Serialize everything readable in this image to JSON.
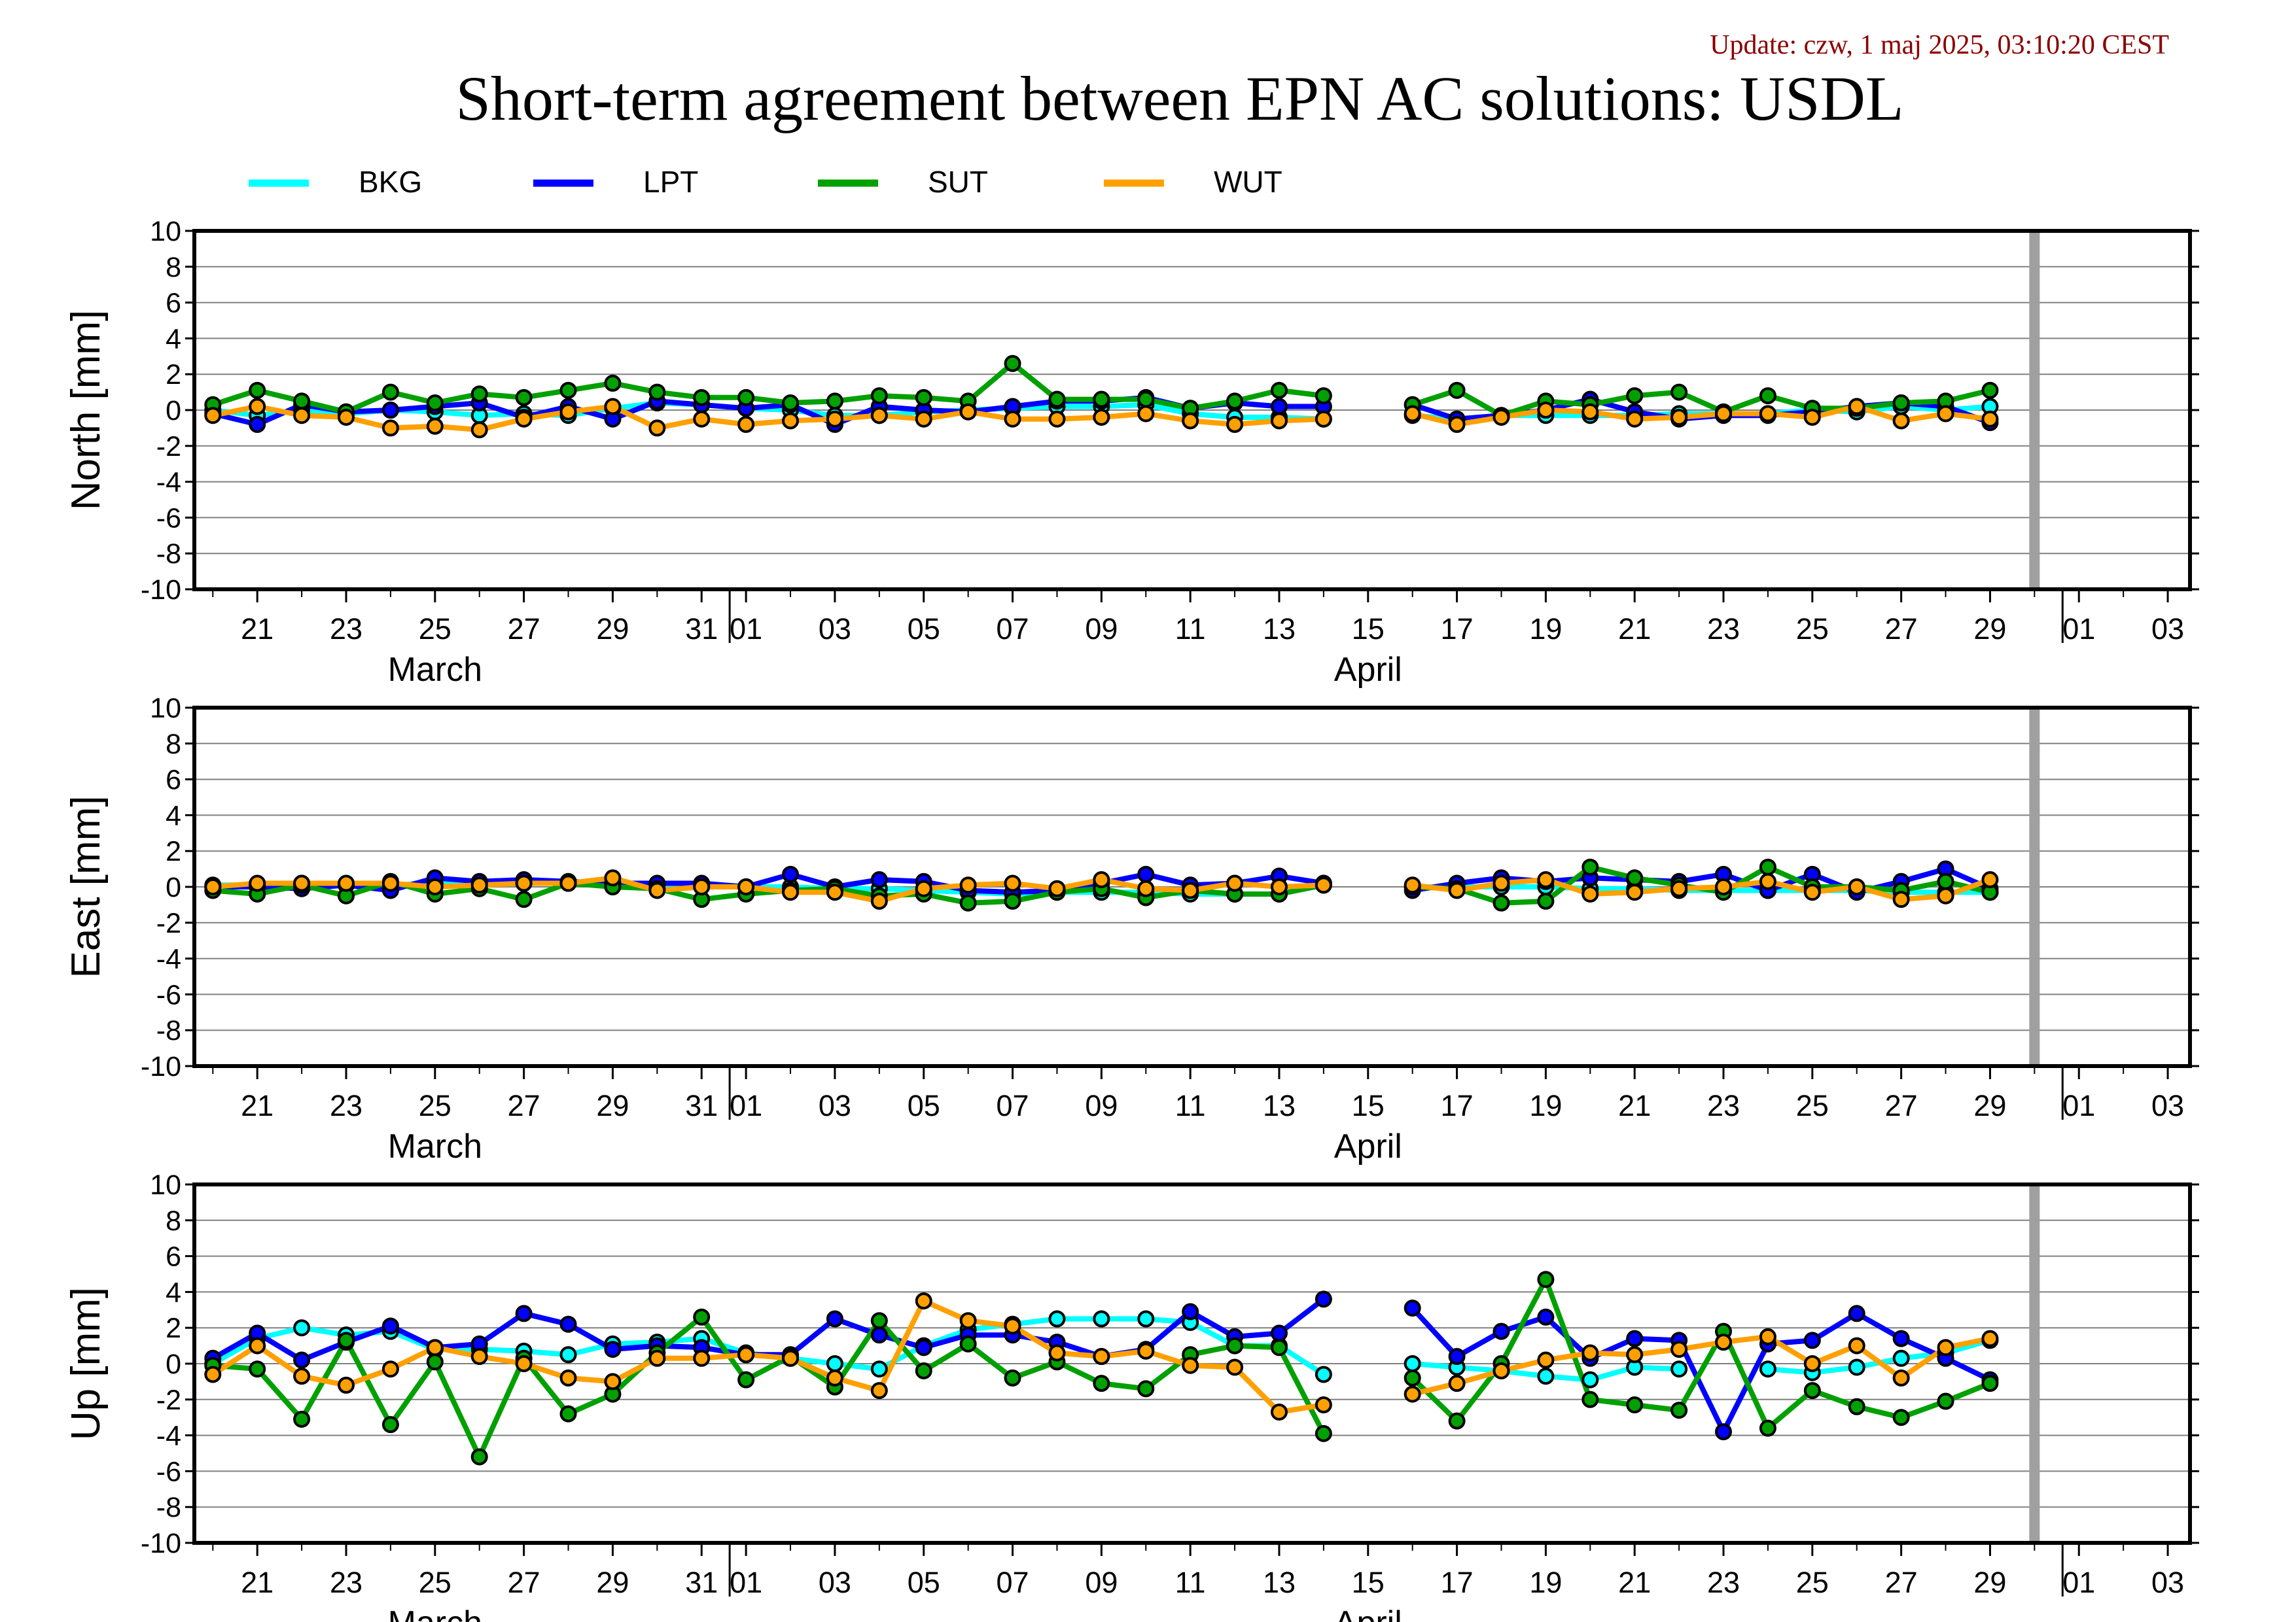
{
  "update_text": "Update: czw, 1 maj 2025, 03:10:20 CEST",
  "title": "Short-term agreement between EPN AC solutions: USDL",
  "colors": {
    "BKG": "#00ffff",
    "LPT": "#0000ff",
    "SUT": "#00a000",
    "WUT": "#ffa000",
    "cutoff": "#a0a0a0",
    "update": "#8b0000"
  },
  "legend": [
    "BKG",
    "LPT",
    "SUT",
    "WUT"
  ],
  "chart_data": {
    "type": "line",
    "x_dates": [
      "2025-03-20",
      "2025-03-21",
      "2025-03-22",
      "2025-03-23",
      "2025-03-24",
      "2025-03-25",
      "2025-03-26",
      "2025-03-27",
      "2025-03-28",
      "2025-03-29",
      "2025-03-30",
      "2025-03-31",
      "2025-04-01",
      "2025-04-02",
      "2025-04-03",
      "2025-04-04",
      "2025-04-05",
      "2025-04-06",
      "2025-04-07",
      "2025-04-08",
      "2025-04-09",
      "2025-04-10",
      "2025-04-11",
      "2025-04-12",
      "2025-04-13",
      "2025-04-14",
      "2025-04-15",
      "2025-04-16",
      "2025-04-17",
      "2025-04-18",
      "2025-04-19",
      "2025-04-20",
      "2025-04-21",
      "2025-04-22",
      "2025-04-23",
      "2025-04-24",
      "2025-04-25",
      "2025-04-26",
      "2025-04-27",
      "2025-04-28",
      "2025-04-29"
    ],
    "x_range": [
      "2025-03-19T14:00",
      "2025-05-03T12:00"
    ],
    "cutoff_date": "2025-04-30",
    "x_tick_labels": [
      "21",
      "23",
      "25",
      "27",
      "29",
      "31",
      "01",
      "03",
      "05",
      "07",
      "09",
      "11",
      "13",
      "15",
      "17",
      "19",
      "21",
      "23",
      "25",
      "27",
      "29",
      "01",
      "03"
    ],
    "x_tick_dates": [
      "2025-03-21",
      "2025-03-23",
      "2025-03-25",
      "2025-03-27",
      "2025-03-29",
      "2025-03-31",
      "2025-04-01",
      "2025-04-03",
      "2025-04-05",
      "2025-04-07",
      "2025-04-09",
      "2025-04-11",
      "2025-04-13",
      "2025-04-15",
      "2025-04-17",
      "2025-04-19",
      "2025-04-21",
      "2025-04-23",
      "2025-04-25",
      "2025-04-27",
      "2025-04-29",
      "2025-05-01",
      "2025-05-03"
    ],
    "month_labels": [
      {
        "label": "March",
        "date": "2025-03-25"
      },
      {
        "label": "April",
        "date": "2025-04-15"
      }
    ],
    "month_boundaries": [
      "2025-04-01",
      "2025-05-01"
    ],
    "ylim": [
      -10,
      10
    ],
    "y_ticks": [
      10,
      8,
      6,
      4,
      2,
      0,
      -2,
      -4,
      -6,
      -8,
      -10
    ],
    "grid": true,
    "legend_position": "top",
    "panels": [
      {
        "ylabel": "North [mm]",
        "series": [
          {
            "name": "BKG",
            "values": [
              0.0,
              -0.3,
              0.0,
              -0.2,
              0.0,
              -0.1,
              -0.3,
              -0.2,
              -0.3,
              0.1,
              0.4,
              0.3,
              0.1,
              0.0,
              -0.3,
              -0.3,
              -0.1,
              0.0,
              0.1,
              0.2,
              0.2,
              0.3,
              -0.2,
              -0.4,
              -0.4,
              -0.5,
              null,
              -0.3,
              -0.5,
              -0.3,
              -0.3,
              -0.3,
              -0.3,
              -0.2,
              -0.2,
              -0.2,
              0.0,
              -0.1,
              0.2,
              0.0,
              0.2
            ]
          },
          {
            "name": "LPT",
            "values": [
              -0.2,
              -0.8,
              0.3,
              -0.1,
              0.0,
              0.2,
              0.4,
              -0.4,
              0.2,
              -0.5,
              0.5,
              0.3,
              0.1,
              0.3,
              -0.8,
              0.2,
              0.0,
              -0.1,
              0.2,
              0.5,
              0.5,
              0.7,
              0.1,
              0.4,
              0.2,
              0.2,
              null,
              0.3,
              -0.5,
              -0.3,
              0.0,
              0.6,
              -0.1,
              -0.5,
              -0.3,
              -0.3,
              -0.1,
              0.2,
              0.4,
              0.2,
              -0.7
            ]
          },
          {
            "name": "SUT",
            "values": [
              0.3,
              1.1,
              0.5,
              -0.1,
              1.0,
              0.4,
              0.9,
              0.7,
              1.1,
              1.5,
              1.0,
              0.7,
              0.7,
              0.4,
              0.5,
              0.8,
              0.7,
              0.5,
              2.6,
              0.6,
              0.6,
              0.6,
              0.1,
              0.5,
              1.1,
              0.8,
              null,
              0.3,
              1.1,
              -0.3,
              0.5,
              0.3,
              0.8,
              1.0,
              -0.1,
              0.8,
              0.1,
              0.1,
              0.4,
              0.5,
              1.1
            ]
          },
          {
            "name": "WUT",
            "values": [
              -0.3,
              0.2,
              -0.3,
              -0.4,
              -1.0,
              -0.9,
              -1.1,
              -0.5,
              -0.1,
              0.2,
              -1.0,
              -0.5,
              -0.8,
              -0.6,
              -0.5,
              -0.3,
              -0.5,
              -0.1,
              -0.5,
              -0.5,
              -0.4,
              -0.2,
              -0.6,
              -0.8,
              -0.6,
              -0.5,
              null,
              -0.2,
              -0.8,
              -0.4,
              0.0,
              -0.1,
              -0.5,
              -0.4,
              -0.2,
              -0.2,
              -0.4,
              0.2,
              -0.6,
              -0.2,
              -0.5
            ]
          }
        ]
      },
      {
        "ylabel": "East [mm]",
        "series": [
          {
            "name": "BKG",
            "values": [
              0.1,
              0.1,
              0.2,
              0.1,
              0.1,
              0.2,
              0.2,
              0.2,
              0.2,
              0.2,
              0.1,
              0.1,
              0.0,
              0.0,
              -0.1,
              -0.1,
              -0.2,
              -0.3,
              -0.4,
              -0.3,
              -0.3,
              -0.3,
              -0.4,
              -0.4,
              -0.4,
              0.2,
              null,
              0.0,
              0.0,
              0.0,
              0.0,
              -0.1,
              -0.1,
              -0.2,
              -0.2,
              -0.2,
              -0.2,
              -0.2,
              -0.3,
              -0.3,
              -0.3
            ]
          },
          {
            "name": "LPT",
            "values": [
              0.0,
              0.0,
              -0.1,
              0.1,
              -0.2,
              0.5,
              0.3,
              0.4,
              0.3,
              0.2,
              0.2,
              0.2,
              0.0,
              0.7,
              0.0,
              0.4,
              0.3,
              -0.2,
              -0.3,
              -0.2,
              0.2,
              0.7,
              0.1,
              0.2,
              0.6,
              0.2,
              null,
              -0.2,
              0.2,
              0.5,
              0.3,
              0.5,
              0.4,
              0.3,
              0.7,
              -0.2,
              0.7,
              -0.3,
              0.3,
              1.0,
              -0.1
            ]
          },
          {
            "name": "SUT",
            "values": [
              -0.2,
              -0.4,
              0.1,
              -0.5,
              0.3,
              -0.4,
              -0.1,
              -0.7,
              0.2,
              0.0,
              -0.1,
              -0.7,
              -0.4,
              -0.2,
              -0.1,
              -0.5,
              -0.4,
              -0.9,
              -0.8,
              -0.3,
              -0.1,
              -0.6,
              -0.2,
              -0.4,
              -0.4,
              0.1,
              null,
              0.0,
              -0.1,
              -0.9,
              -0.8,
              1.1,
              0.5,
              0.1,
              -0.3,
              1.1,
              0.0,
              0.0,
              -0.2,
              0.3,
              -0.3
            ]
          },
          {
            "name": "WUT",
            "values": [
              0.0,
              0.2,
              0.2,
              0.2,
              0.2,
              0.0,
              0.1,
              0.2,
              0.2,
              0.5,
              -0.2,
              0.0,
              0.0,
              -0.3,
              -0.3,
              -0.8,
              -0.1,
              0.1,
              0.2,
              -0.1,
              0.4,
              -0.1,
              -0.2,
              0.2,
              0.0,
              0.1,
              null,
              0.1,
              -0.2,
              0.2,
              0.4,
              -0.4,
              -0.3,
              -0.1,
              0.0,
              0.3,
              -0.3,
              0.0,
              -0.7,
              -0.5,
              0.4
            ]
          }
        ]
      },
      {
        "ylabel": "Up [mm]",
        "series": [
          {
            "name": "BKG",
            "values": [
              0.0,
              1.4,
              2.0,
              1.6,
              1.8,
              0.8,
              0.8,
              0.7,
              0.5,
              1.1,
              1.2,
              1.4,
              0.6,
              0.3,
              0.0,
              -0.3,
              1.0,
              1.9,
              2.2,
              2.5,
              2.5,
              2.5,
              2.3,
              1.0,
              1.0,
              -0.6,
              null,
              0.0,
              -0.2,
              -0.4,
              -0.7,
              -0.9,
              -0.2,
              -0.3,
              null,
              -0.3,
              -0.5,
              -0.2,
              0.3,
              0.6,
              1.3
            ]
          },
          {
            "name": "LPT",
            "values": [
              0.3,
              1.7,
              0.2,
              1.2,
              2.1,
              0.9,
              1.1,
              2.8,
              2.2,
              0.8,
              1.0,
              0.9,
              0.5,
              0.5,
              2.5,
              1.6,
              0.9,
              1.6,
              1.6,
              1.2,
              0.4,
              0.8,
              2.9,
              1.5,
              1.7,
              3.6,
              null,
              3.1,
              0.4,
              1.8,
              2.6,
              0.3,
              1.4,
              1.3,
              -3.8,
              1.1,
              1.3,
              2.8,
              1.4,
              0.3,
              -0.9
            ]
          },
          {
            "name": "SUT",
            "values": [
              -0.1,
              -0.3,
              -3.1,
              1.3,
              -3.4,
              0.1,
              -5.2,
              0.3,
              -2.8,
              -1.7,
              0.6,
              2.6,
              -0.9,
              0.4,
              -1.3,
              2.4,
              -0.4,
              1.1,
              -0.8,
              0.1,
              -1.1,
              -1.4,
              0.5,
              1.0,
              0.9,
              -3.9,
              null,
              -0.8,
              -3.2,
              0.0,
              4.7,
              -2.0,
              -2.3,
              -2.6,
              1.8,
              -3.6,
              -1.5,
              -2.4,
              -3.0,
              -2.1,
              -1.1
            ]
          },
          {
            "name": "WUT",
            "values": [
              -0.6,
              1.0,
              -0.7,
              -1.2,
              -0.3,
              0.9,
              0.4,
              0.0,
              -0.8,
              -1.0,
              0.3,
              0.3,
              0.5,
              0.3,
              -0.8,
              -1.5,
              3.5,
              2.4,
              2.1,
              0.6,
              0.4,
              0.7,
              -0.1,
              -0.2,
              -2.7,
              -2.3,
              null,
              -1.7,
              -1.1,
              -0.4,
              0.2,
              0.6,
              0.5,
              0.8,
              1.2,
              1.5,
              0.0,
              1.0,
              -0.8,
              0.9,
              1.4
            ]
          }
        ]
      }
    ]
  }
}
